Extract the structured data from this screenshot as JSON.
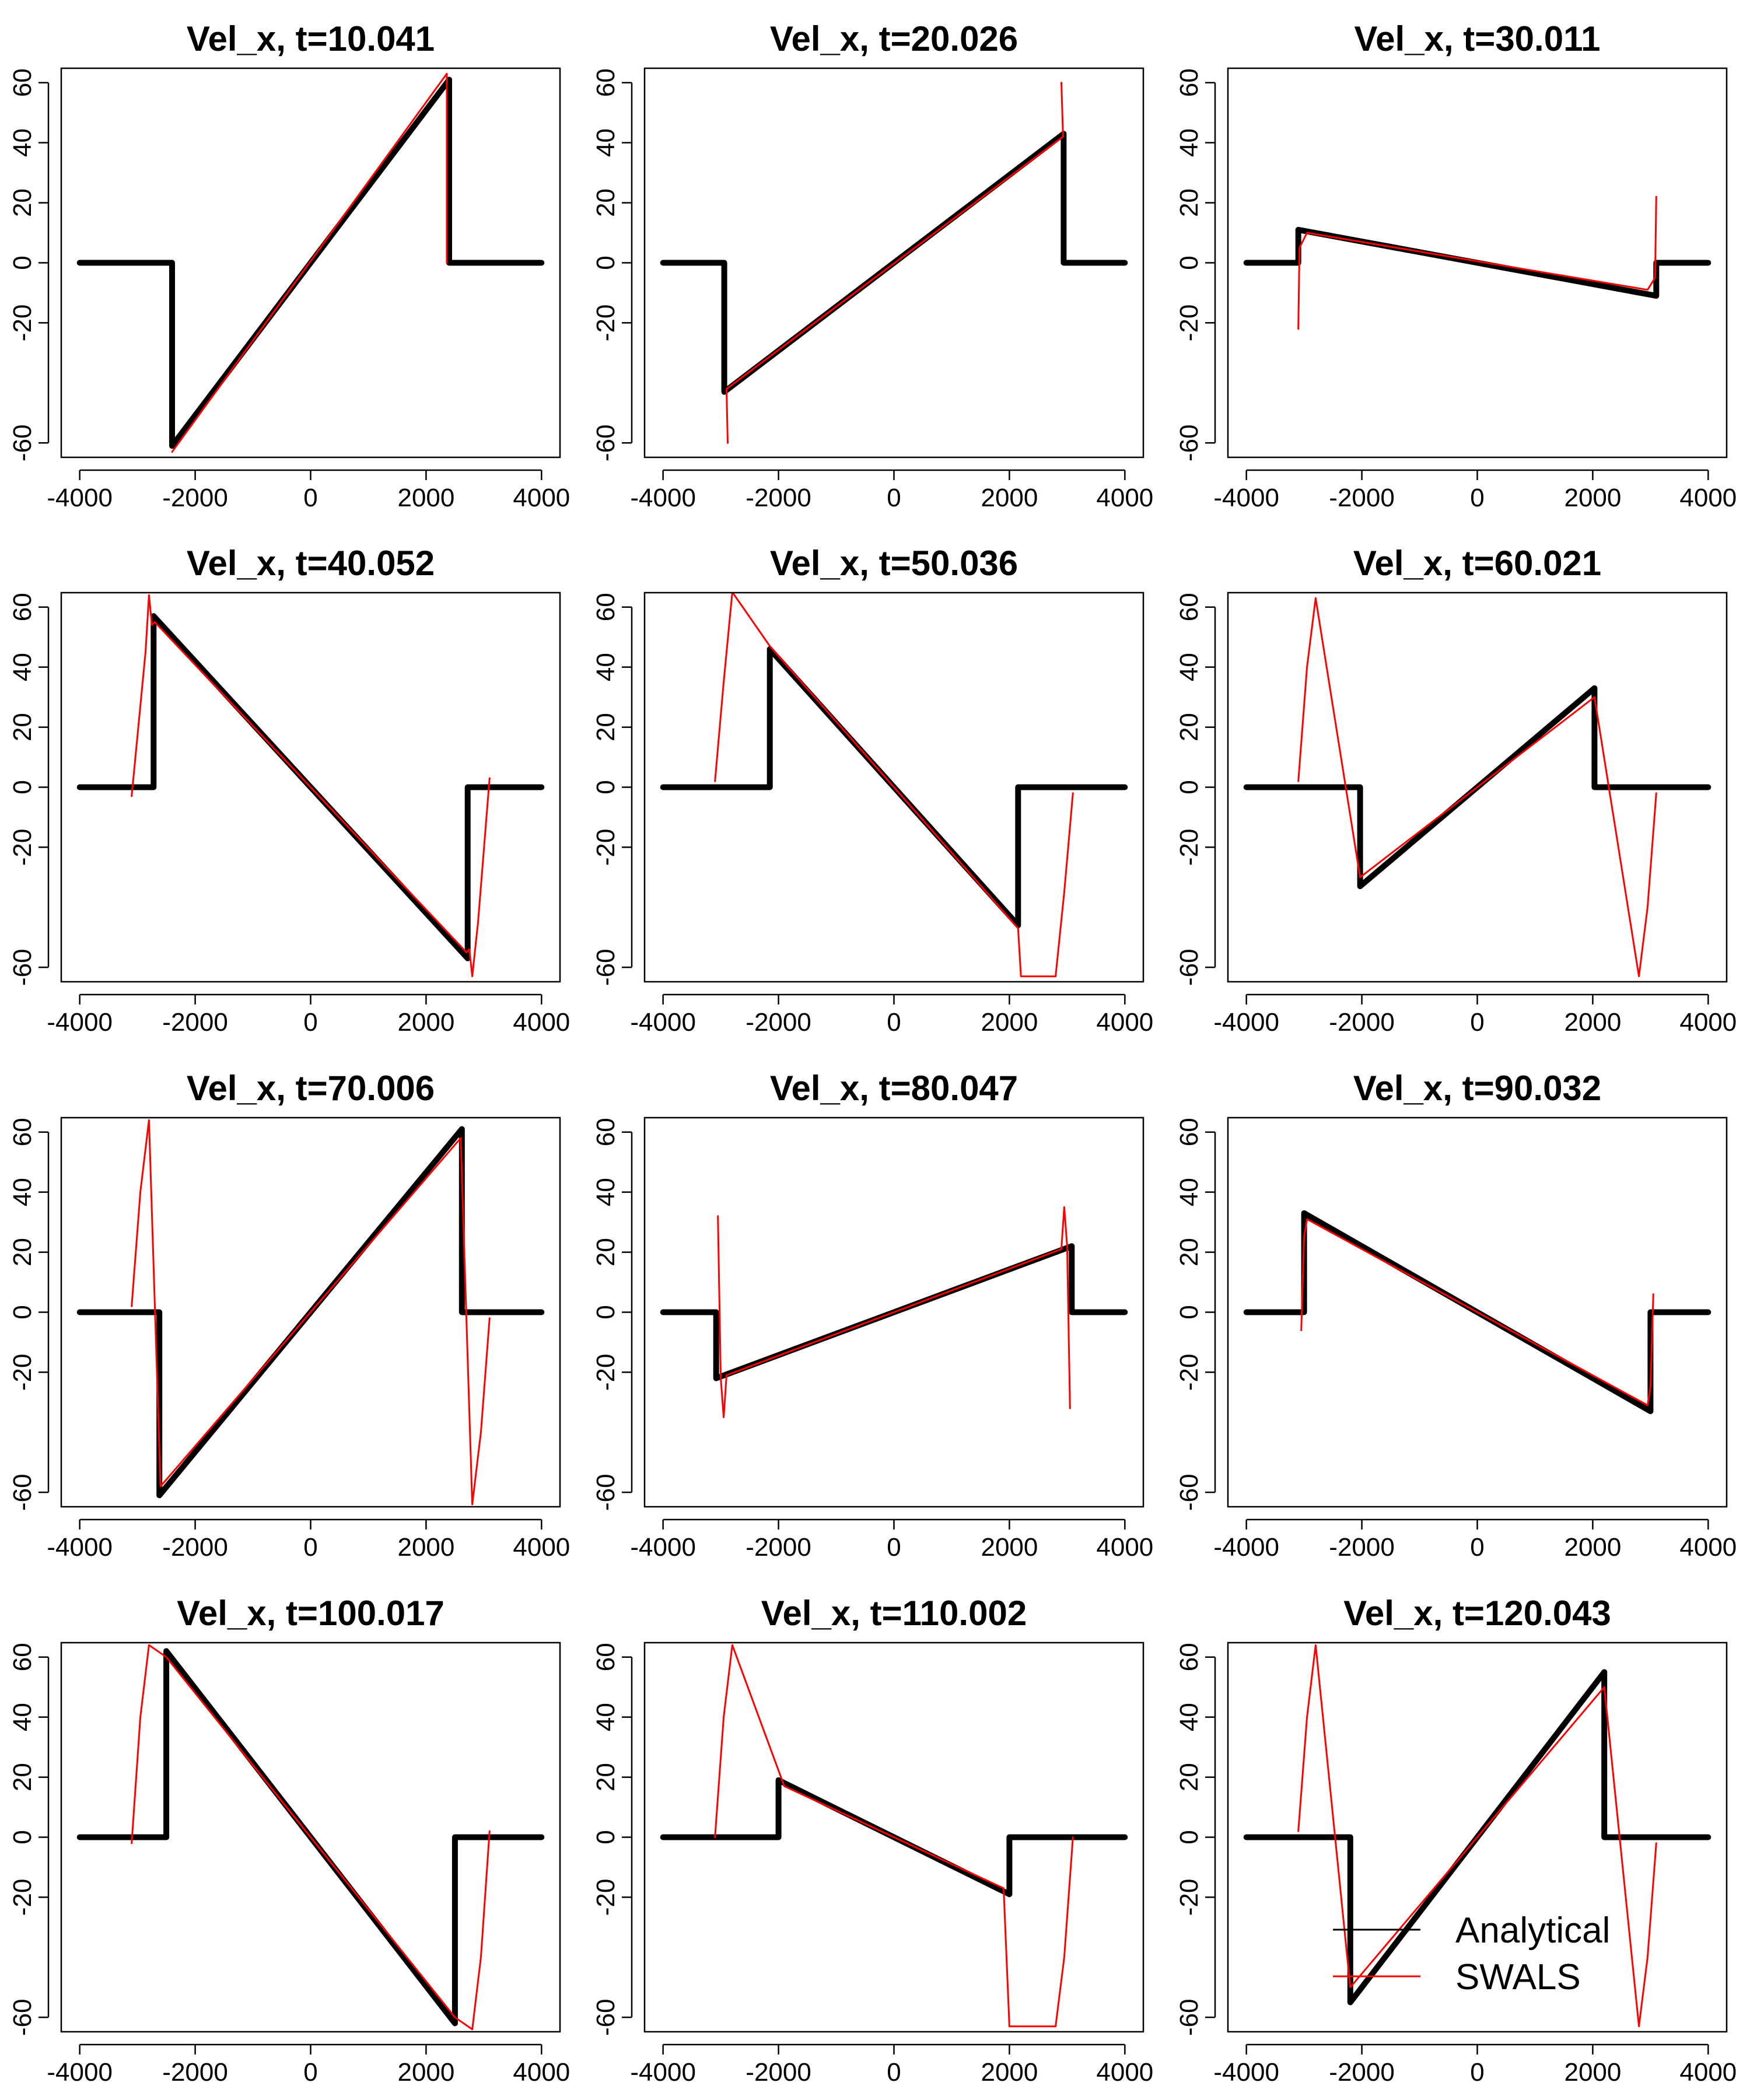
{
  "colors": {
    "analytical": "#000000",
    "swals": "#ff0000",
    "frame": "#000000",
    "background": "#ffffff"
  },
  "legend": {
    "position": "bottom-right of last panel",
    "entries": [
      "Analytical",
      "SWALS"
    ]
  },
  "chart_data": [
    {
      "type": "line",
      "title": "Vel_x, t=10.041",
      "xlim": [
        -4000,
        4000
      ],
      "ylim": [
        -60,
        60
      ],
      "xticks": [
        -4000,
        -2000,
        0,
        2000,
        4000
      ],
      "yticks": [
        -60,
        -20,
        0,
        20,
        40,
        60
      ],
      "xtick_labels": [
        "-4000",
        "-2000",
        "0",
        "2000",
        "4000"
      ],
      "ytick_labels": [
        "-60",
        "-20",
        "0",
        "20",
        "40",
        "60"
      ],
      "series": [
        {
          "name": "Analytical",
          "x": [
            -4000,
            -2400,
            -2400,
            2400,
            2400,
            4000
          ],
          "y": [
            0,
            0,
            -61,
            61,
            0,
            0
          ]
        },
        {
          "name": "SWALS",
          "x": [
            -2400,
            2360,
            2360
          ],
          "y": [
            -63,
            63,
            0
          ]
        }
      ]
    },
    {
      "type": "line",
      "title": "Vel_x, t=20.026",
      "xlim": [
        -4000,
        4000
      ],
      "ylim": [
        -60,
        60
      ],
      "xticks": [
        -4000,
        -2000,
        0,
        2000,
        4000
      ],
      "yticks": [
        -60,
        -20,
        0,
        20,
        40,
        60
      ],
      "xtick_labels": [
        "-4000",
        "-2000",
        "0",
        "2000",
        "4000"
      ],
      "ytick_labels": [
        "-60",
        "-20",
        "0",
        "20",
        "40",
        "60"
      ],
      "series": [
        {
          "name": "Analytical",
          "x": [
            -4000,
            -2940,
            -2940,
            2940,
            2940,
            4000
          ],
          "y": [
            0,
            0,
            -43,
            43,
            0,
            0
          ]
        },
        {
          "name": "SWALS",
          "x": [
            -2880,
            -2900,
            2930,
            2900
          ],
          "y": [
            -60,
            -42,
            42,
            60
          ]
        }
      ]
    },
    {
      "type": "line",
      "title": "Vel_x, t=30.011",
      "xlim": [
        -4000,
        4000
      ],
      "ylim": [
        -60,
        60
      ],
      "xticks": [
        -4000,
        -2000,
        0,
        2000,
        4000
      ],
      "yticks": [
        -60,
        -20,
        0,
        20,
        40,
        60
      ],
      "xtick_labels": [
        "-4000",
        "-2000",
        "0",
        "2000",
        "4000"
      ],
      "ytick_labels": [
        "-60",
        "-20",
        "0",
        "20",
        "40",
        "60"
      ],
      "series": [
        {
          "name": "Analytical",
          "x": [
            -4000,
            -3100,
            -3100,
            3100,
            3100,
            4000
          ],
          "y": [
            0,
            0,
            11,
            -11,
            0,
            0
          ]
        },
        {
          "name": "SWALS",
          "x": [
            -3100,
            -3080,
            -2950,
            2950,
            3080,
            3100
          ],
          "y": [
            -22,
            5,
            10,
            -9,
            -5,
            22
          ]
        }
      ]
    },
    {
      "type": "line",
      "title": "Vel_x, t=40.052",
      "xlim": [
        -4000,
        4000
      ],
      "ylim": [
        -60,
        60
      ],
      "xticks": [
        -4000,
        -2000,
        0,
        2000,
        4000
      ],
      "yticks": [
        -60,
        -20,
        0,
        20,
        40,
        60
      ],
      "xtick_labels": [
        "-4000",
        "-2000",
        "0",
        "2000",
        "4000"
      ],
      "ytick_labels": [
        "-60",
        "-20",
        "0",
        "20",
        "40",
        "60"
      ],
      "series": [
        {
          "name": "Analytical",
          "x": [
            -4000,
            -2720,
            -2720,
            2720,
            2720,
            4000
          ],
          "y": [
            0,
            0,
            57,
            -57,
            0,
            0
          ]
        },
        {
          "name": "SWALS",
          "x": [
            -3100,
            -2860,
            -2800,
            -2750,
            -2700,
            2700,
            2750,
            2800,
            2900,
            3100
          ],
          "y": [
            -3,
            45,
            64,
            54,
            55,
            -55,
            -54,
            -63,
            -45,
            3
          ]
        }
      ]
    },
    {
      "type": "line",
      "title": "Vel_x, t=50.036",
      "xlim": [
        -4000,
        4000
      ],
      "ylim": [
        -60,
        60
      ],
      "xticks": [
        -4000,
        -2000,
        0,
        2000,
        4000
      ],
      "yticks": [
        -60,
        -20,
        0,
        20,
        40,
        60
      ],
      "xtick_labels": [
        "-4000",
        "-2000",
        "0",
        "2000",
        "4000"
      ],
      "ytick_labels": [
        "-60",
        "-20",
        "0",
        "20",
        "40",
        "60"
      ],
      "series": [
        {
          "name": "Analytical",
          "x": [
            -4000,
            -2150,
            -2150,
            2150,
            2150,
            4000
          ],
          "y": [
            0,
            0,
            46,
            -46,
            0,
            0
          ]
        },
        {
          "name": "SWALS",
          "x": [
            -3100,
            -2950,
            -2800,
            -2150,
            2150,
            2200,
            2800,
            2950,
            3100
          ],
          "y": [
            2,
            35,
            65,
            47,
            -47,
            -63,
            -63,
            -35,
            -2
          ]
        }
      ]
    },
    {
      "type": "line",
      "title": "Vel_x, t=60.021",
      "xlim": [
        -4000,
        4000
      ],
      "ylim": [
        -60,
        60
      ],
      "xticks": [
        -4000,
        -2000,
        0,
        2000,
        4000
      ],
      "yticks": [
        -60,
        -20,
        0,
        20,
        40,
        60
      ],
      "xtick_labels": [
        "-4000",
        "-2000",
        "0",
        "2000",
        "4000"
      ],
      "ytick_labels": [
        "-60",
        "-20",
        "0",
        "20",
        "40",
        "60"
      ],
      "series": [
        {
          "name": "Analytical",
          "x": [
            -4000,
            -2030,
            -2030,
            2030,
            2030,
            4000
          ],
          "y": [
            0,
            0,
            -33,
            33,
            0,
            0
          ]
        },
        {
          "name": "SWALS",
          "x": [
            -3100,
            -2950,
            -2800,
            -2030,
            2030,
            2800,
            2950,
            3100
          ],
          "y": [
            2,
            40,
            63,
            -30,
            30,
            -63,
            -40,
            -2
          ]
        }
      ]
    },
    {
      "type": "line",
      "title": "Vel_x, t=70.006",
      "xlim": [
        -4000,
        4000
      ],
      "ylim": [
        -60,
        60
      ],
      "xticks": [
        -4000,
        -2000,
        0,
        2000,
        4000
      ],
      "yticks": [
        -60,
        -20,
        0,
        20,
        40,
        60
      ],
      "xtick_labels": [
        "-4000",
        "-2000",
        "0",
        "2000",
        "4000"
      ],
      "ytick_labels": [
        "-60",
        "-20",
        "0",
        "20",
        "40",
        "60"
      ],
      "series": [
        {
          "name": "Analytical",
          "x": [
            -4000,
            -2620,
            -2620,
            2620,
            2620,
            4000
          ],
          "y": [
            0,
            0,
            -61,
            61,
            0,
            0
          ]
        },
        {
          "name": "SWALS",
          "x": [
            -3100,
            -2950,
            -2800,
            -2600,
            2600,
            2800,
            2950,
            3100
          ],
          "y": [
            2,
            40,
            64,
            -58,
            58,
            -64,
            -40,
            -2
          ]
        }
      ]
    },
    {
      "type": "line",
      "title": "Vel_x, t=80.047",
      "xlim": [
        -4000,
        4000
      ],
      "ylim": [
        -60,
        60
      ],
      "xticks": [
        -4000,
        -2000,
        0,
        2000,
        4000
      ],
      "yticks": [
        -60,
        -20,
        0,
        20,
        40,
        60
      ],
      "xtick_labels": [
        "-4000",
        "-2000",
        "0",
        "2000",
        "4000"
      ],
      "ytick_labels": [
        "-60",
        "-20",
        "0",
        "20",
        "40",
        "60"
      ],
      "series": [
        {
          "name": "Analytical",
          "x": [
            -4000,
            -3080,
            -3080,
            3080,
            3080,
            4000
          ],
          "y": [
            0,
            0,
            -22,
            22,
            0,
            0
          ]
        },
        {
          "name": "SWALS",
          "x": [
            -3050,
            -3000,
            -2950,
            -2900,
            2900,
            2950,
            3000,
            3050
          ],
          "y": [
            32,
            -22,
            -35,
            -21,
            21,
            35,
            22,
            -32
          ]
        }
      ]
    },
    {
      "type": "line",
      "title": "Vel_x, t=90.032",
      "xlim": [
        -4000,
        4000
      ],
      "ylim": [
        -60,
        60
      ],
      "xticks": [
        -4000,
        -2000,
        0,
        2000,
        4000
      ],
      "yticks": [
        -60,
        -20,
        0,
        20,
        40,
        60
      ],
      "xtick_labels": [
        "-4000",
        "-2000",
        "0",
        "2000",
        "4000"
      ],
      "ytick_labels": [
        "-60",
        "-20",
        "0",
        "20",
        "40",
        "60"
      ],
      "series": [
        {
          "name": "Analytical",
          "x": [
            -4000,
            -3000,
            -3000,
            3000,
            3000,
            4000
          ],
          "y": [
            0,
            0,
            33,
            -33,
            0,
            0
          ]
        },
        {
          "name": "SWALS",
          "x": [
            -3050,
            -3000,
            -2950,
            2950,
            3000,
            3050
          ],
          "y": [
            -6,
            25,
            31,
            -31,
            -25,
            6
          ]
        }
      ]
    },
    {
      "type": "line",
      "title": "Vel_x, t=100.017",
      "xlim": [
        -4000,
        4000
      ],
      "ylim": [
        -60,
        60
      ],
      "xticks": [
        -4000,
        -2000,
        0,
        2000,
        4000
      ],
      "yticks": [
        -60,
        -20,
        0,
        20,
        40,
        60
      ],
      "xtick_labels": [
        "-4000",
        "-2000",
        "0",
        "2000",
        "4000"
      ],
      "ytick_labels": [
        "-60",
        "-20",
        "0",
        "20",
        "40",
        "60"
      ],
      "series": [
        {
          "name": "Analytical",
          "x": [
            -4000,
            -2500,
            -2500,
            2500,
            2500,
            4000
          ],
          "y": [
            0,
            0,
            62,
            -62,
            0,
            0
          ]
        },
        {
          "name": "SWALS",
          "x": [
            -3100,
            -2950,
            -2800,
            -2500,
            2500,
            2800,
            2950,
            3100
          ],
          "y": [
            -2,
            40,
            64,
            60,
            -60,
            -64,
            -40,
            2
          ]
        }
      ]
    },
    {
      "type": "line",
      "title": "Vel_x, t=110.002",
      "xlim": [
        -4000,
        4000
      ],
      "ylim": [
        -60,
        60
      ],
      "xticks": [
        -4000,
        -2000,
        0,
        2000,
        4000
      ],
      "yticks": [
        -60,
        -20,
        0,
        20,
        40,
        60
      ],
      "xtick_labels": [
        "-4000",
        "-2000",
        "0",
        "2000",
        "4000"
      ],
      "ytick_labels": [
        "-60",
        "-20",
        "0",
        "20",
        "40",
        "60"
      ],
      "series": [
        {
          "name": "Analytical",
          "x": [
            -4000,
            -2000,
            -2000,
            2000,
            2000,
            4000
          ],
          "y": [
            0,
            0,
            19,
            -19,
            0,
            0
          ]
        },
        {
          "name": "SWALS",
          "x": [
            -3100,
            -2950,
            -2800,
            -1900,
            1900,
            2000,
            2800,
            2950,
            3100
          ],
          "y": [
            0,
            40,
            64,
            17,
            -17,
            -63,
            -63,
            -40,
            0
          ]
        }
      ]
    },
    {
      "type": "line",
      "title": "Vel_x, t=120.043",
      "xlim": [
        -4000,
        4000
      ],
      "ylim": [
        -60,
        60
      ],
      "xticks": [
        -4000,
        -2000,
        0,
        2000,
        4000
      ],
      "yticks": [
        -60,
        -20,
        0,
        20,
        40,
        60
      ],
      "xtick_labels": [
        "-4000",
        "-2000",
        "0",
        "2000",
        "4000"
      ],
      "ytick_labels": [
        "-60",
        "-20",
        "0",
        "20",
        "40",
        "60"
      ],
      "series": [
        {
          "name": "Analytical",
          "x": [
            -4000,
            -2200,
            -2200,
            2200,
            2200,
            4000
          ],
          "y": [
            0,
            0,
            -55,
            55,
            0,
            0
          ]
        },
        {
          "name": "SWALS",
          "x": [
            -3100,
            -2950,
            -2800,
            -2200,
            2200,
            2800,
            2950,
            3100
          ],
          "y": [
            2,
            40,
            64,
            -50,
            50,
            -63,
            -40,
            -2
          ]
        }
      ]
    }
  ]
}
